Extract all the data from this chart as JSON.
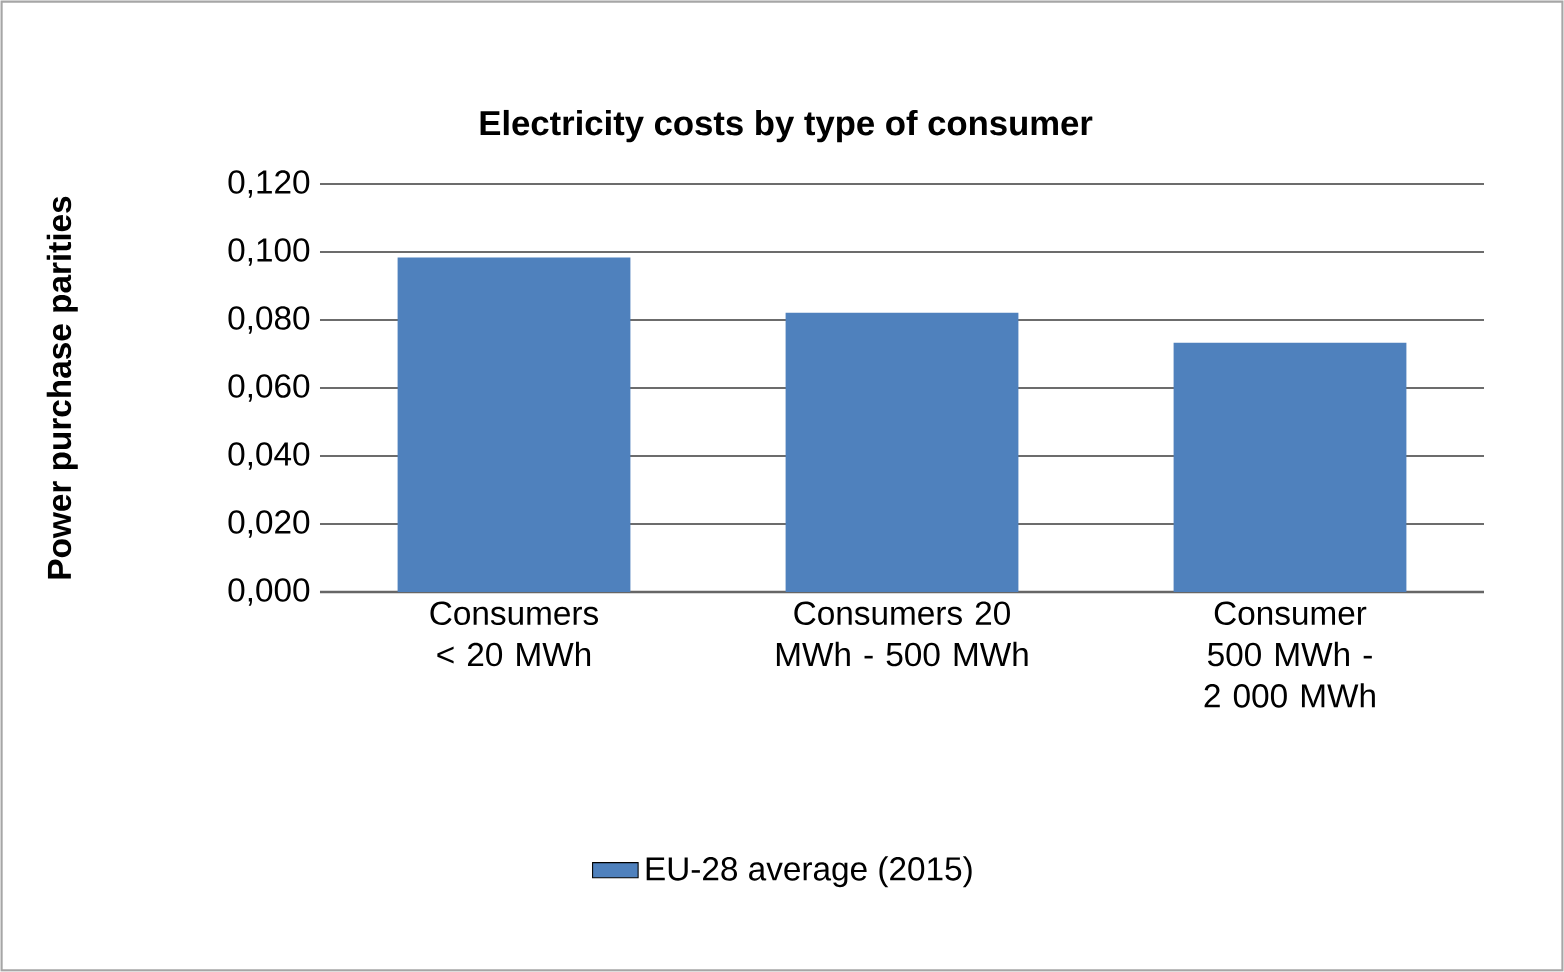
{
  "chart_data": {
    "type": "bar",
    "title": "Electricity costs by type of consumer",
    "ylabel": "Power purchase parities",
    "categories": [
      "Consumers < 20 MWh",
      "Consumers 20 MWh - 500 MWh",
      "Consumer 500 MWh - 2 000 MWh"
    ],
    "series": [
      {
        "name": "EU-28 average (2015)",
        "color": "#4f81bd",
        "values": [
          0.0984,
          0.0821,
          0.0733
        ]
      }
    ],
    "ylim": [
      0,
      0.12
    ],
    "yticks": [
      {
        "value": 0,
        "label": "0,000"
      },
      {
        "value": 0.02,
        "label": "0,020"
      },
      {
        "value": 0.04,
        "label": "0,040"
      },
      {
        "value": 0.06,
        "label": "0,060"
      },
      {
        "value": 0.08,
        "label": "0,080"
      },
      {
        "value": 0.1,
        "label": "0,100"
      },
      {
        "value": 0.12,
        "label": "0,120"
      }
    ],
    "grid": "y",
    "legend": "bottom"
  }
}
